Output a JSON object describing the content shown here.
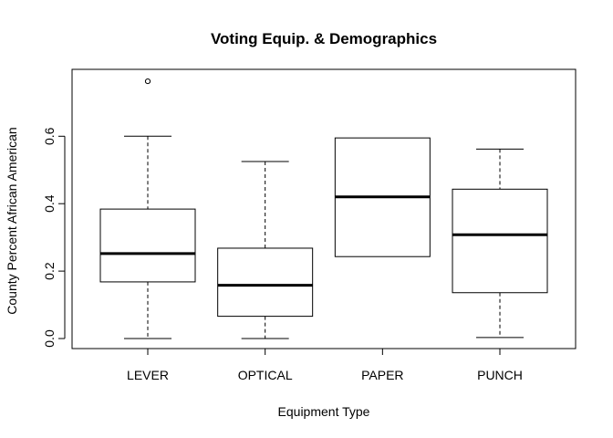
{
  "chart_data": {
    "type": "boxplot",
    "title": "Voting Equip. & Demographics",
    "xlabel": "Equipment Type",
    "ylabel": "County Percent African American",
    "categories": [
      "LEVER",
      "OPTICAL",
      "PAPER",
      "PUNCH"
    ],
    "boxes": [
      {
        "category": "LEVER",
        "whisker_low": 0.0,
        "q1": 0.168,
        "median": 0.252,
        "q3": 0.384,
        "whisker_high": 0.6,
        "outliers": [
          0.763
        ]
      },
      {
        "category": "OPTICAL",
        "whisker_low": 0.0,
        "q1": 0.066,
        "median": 0.158,
        "q3": 0.268,
        "whisker_high": 0.525,
        "outliers": []
      },
      {
        "category": "PAPER",
        "whisker_low": 0.243,
        "q1": 0.243,
        "median": 0.42,
        "q3": 0.595,
        "whisker_high": 0.595,
        "outliers": []
      },
      {
        "category": "PUNCH",
        "whisker_low": 0.003,
        "q1": 0.136,
        "median": 0.308,
        "q3": 0.443,
        "whisker_high": 0.562,
        "outliers": []
      }
    ],
    "y_ticks": [
      0.0,
      0.2,
      0.4,
      0.6
    ],
    "y_tick_labels": [
      "0.0",
      "0.2",
      "0.4",
      "0.6"
    ],
    "ylim": [
      -0.03,
      0.8
    ],
    "grid": false,
    "legend": "none"
  }
}
